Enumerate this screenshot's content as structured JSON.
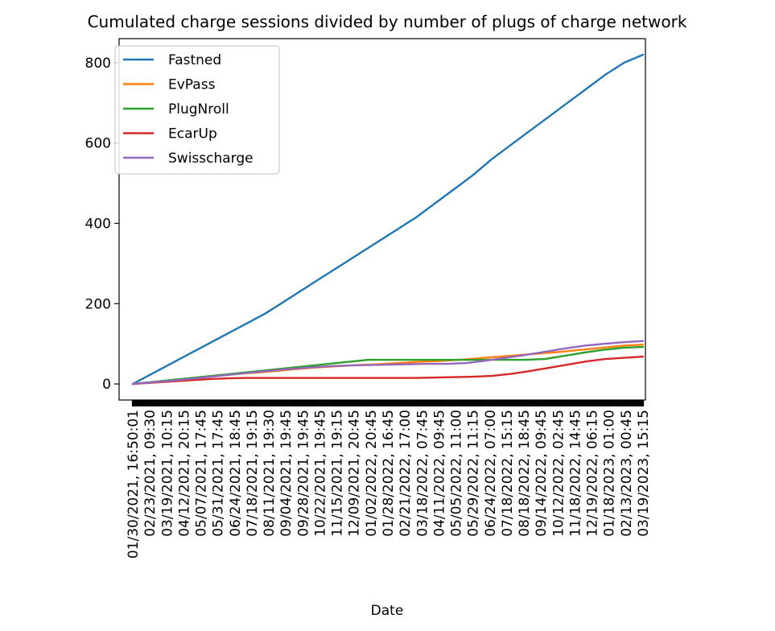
{
  "chart_data": {
    "type": "line",
    "title": "Cumulated charge sessions divided by number of plugs of charge network",
    "xlabel": "Date",
    "ylabel": "",
    "ylim": [
      -40,
      860
    ],
    "y_ticks": [
      0,
      200,
      400,
      600,
      800
    ],
    "legend_position": "top-left",
    "x_tick_labels": [
      "01/30/2021, 16:50:01",
      "02/23/2021, 09:30",
      "03/19/2021, 10:15",
      "04/12/2021, 20:15",
      "05/07/2021, 17:45",
      "05/31/2021, 17:45",
      "06/24/2021, 18:45",
      "07/18/2021, 19:15",
      "08/11/2021, 19:30",
      "09/04/2021, 19:45",
      "09/28/2021, 19:45",
      "10/22/2021, 19:45",
      "11/15/2021, 19:15",
      "12/09/2021, 20:45",
      "01/02/2022, 20:45",
      "01/28/2022, 16:45",
      "02/21/2022, 17:00",
      "03/18/2022, 07:45",
      "04/11/2022, 09:45",
      "05/05/2022, 11:00",
      "05/29/2022, 11:15",
      "06/24/2022, 07:00",
      "07/18/2022, 15:15",
      "08/18/2022, 18:45",
      "09/14/2022, 09:45",
      "10/12/2022, 02:45",
      "11/18/2022, 14:45",
      "12/19/2022, 06:15",
      "01/18/2023, 01:00",
      "02/13/2023, 00:45",
      "03/19/2023, 15:15"
    ],
    "series": [
      {
        "name": "Fastned",
        "color": "#1f77b4",
        "values": [
          0,
          25,
          50,
          75,
          100,
          125,
          150,
          175,
          205,
          235,
          265,
          295,
          325,
          355,
          385,
          415,
          450,
          485,
          520,
          560,
          595,
          630,
          665,
          700,
          735,
          770,
          800,
          820
        ]
      },
      {
        "name": "EvPass",
        "color": "#ff7f0e",
        "values": [
          0,
          5,
          10,
          15,
          20,
          25,
          28,
          32,
          37,
          41,
          44,
          47,
          49,
          52,
          55,
          57,
          60,
          64,
          68,
          72,
          76,
          80,
          85,
          90,
          95,
          98
        ]
      },
      {
        "name": "PlugNroll",
        "color": "#2ca02c",
        "values": [
          0,
          5,
          10,
          15,
          20,
          25,
          30,
          35,
          40,
          45,
          50,
          55,
          60,
          60,
          60,
          60,
          60,
          60,
          60,
          60,
          60,
          62,
          70,
          78,
          85,
          90,
          92
        ]
      },
      {
        "name": "EcarUp",
        "color": "#d62728",
        "values": [
          0,
          3,
          6,
          9,
          12,
          14,
          15,
          15,
          15,
          15,
          15,
          15,
          15,
          15,
          15,
          15,
          16,
          17,
          18,
          20,
          25,
          32,
          40,
          48,
          56,
          62,
          65,
          68
        ]
      },
      {
        "name": "Swisscharge",
        "color": "#9467bd",
        "values": [
          0,
          4,
          8,
          13,
          18,
          23,
          28,
          33,
          37,
          41,
          44,
          46,
          47,
          48,
          49,
          50,
          50,
          52,
          58,
          65,
          72,
          80,
          88,
          95,
          100,
          104,
          107
        ]
      }
    ]
  }
}
